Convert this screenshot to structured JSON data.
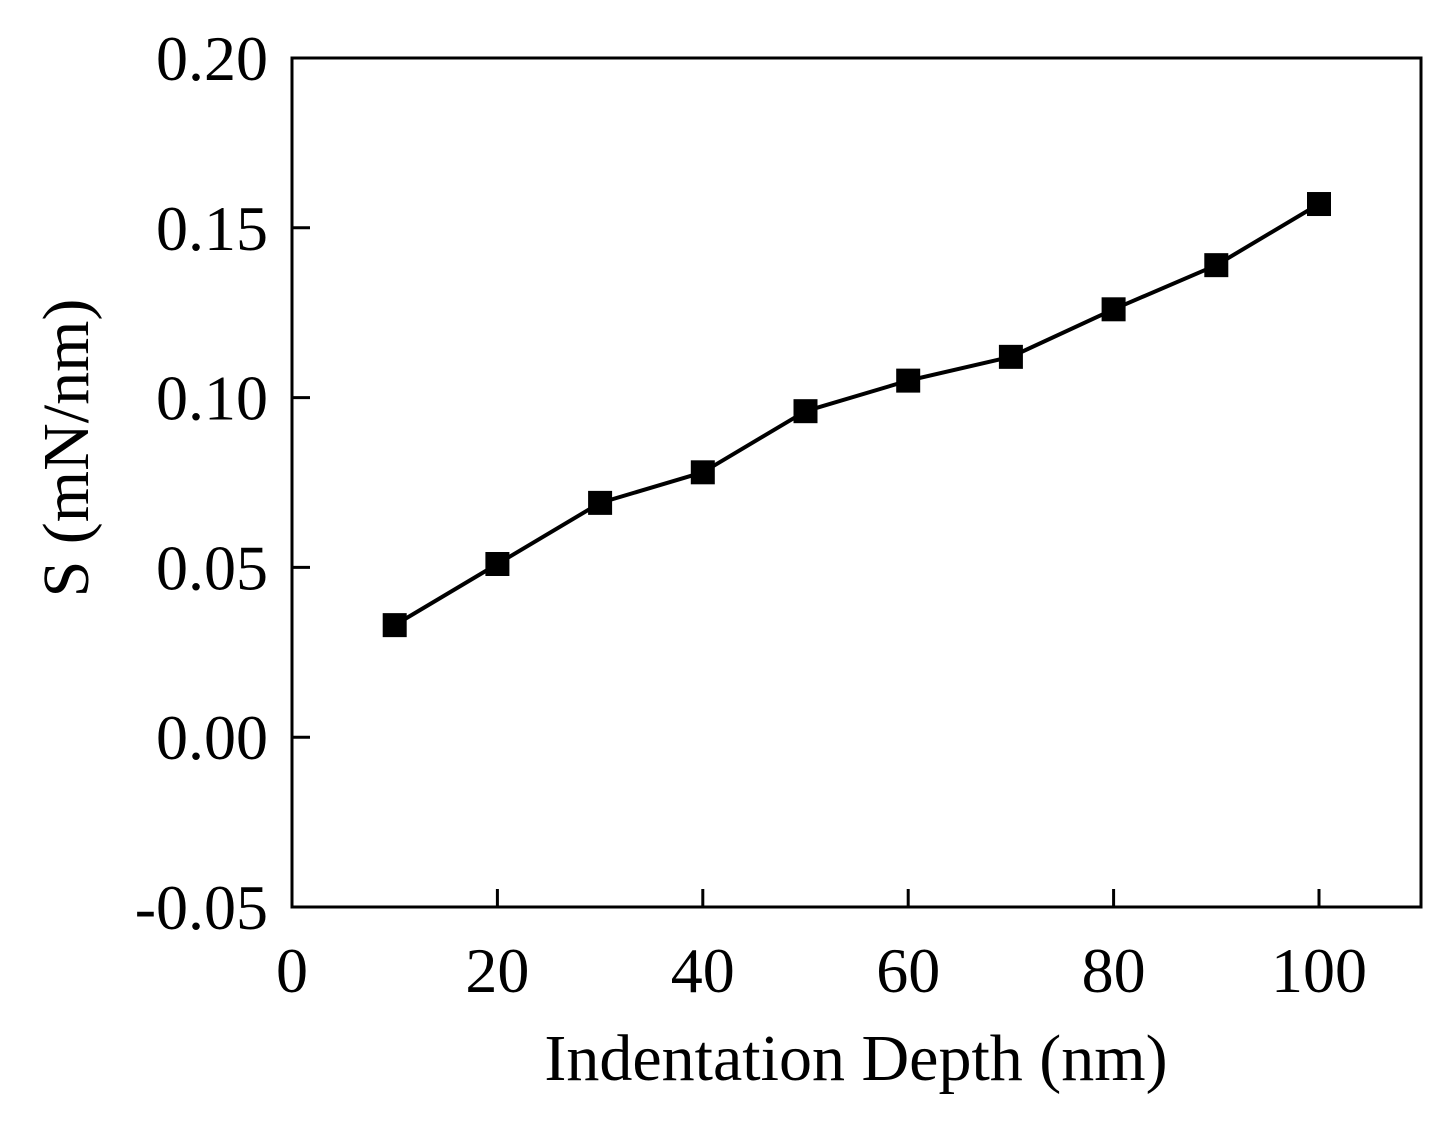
{
  "chart_data": {
    "type": "line",
    "title": "",
    "xlabel": "Indentation Depth (nm)",
    "ylabel": "S (mN/nm)",
    "xlim": [
      0,
      110
    ],
    "ylim": [
      -0.05,
      0.2
    ],
    "x_ticks": [
      0,
      20,
      40,
      60,
      80,
      100
    ],
    "x_tick_labels": [
      "0",
      "20",
      "40",
      "60",
      "80",
      "100"
    ],
    "y_ticks": [
      -0.05,
      0.0,
      0.05,
      0.1,
      0.15,
      0.2
    ],
    "y_tick_labels": [
      "-0.05",
      "0.00",
      "0.05",
      "0.10",
      "0.15",
      "0.20"
    ],
    "grid": false,
    "series": [
      {
        "name": "S",
        "marker": "square",
        "color": "#000000",
        "x": [
          10,
          20,
          30,
          40,
          50,
          60,
          70,
          80,
          90,
          100
        ],
        "y": [
          0.033,
          0.051,
          0.069,
          0.078,
          0.096,
          0.105,
          0.112,
          0.126,
          0.139,
          0.157
        ]
      }
    ]
  }
}
